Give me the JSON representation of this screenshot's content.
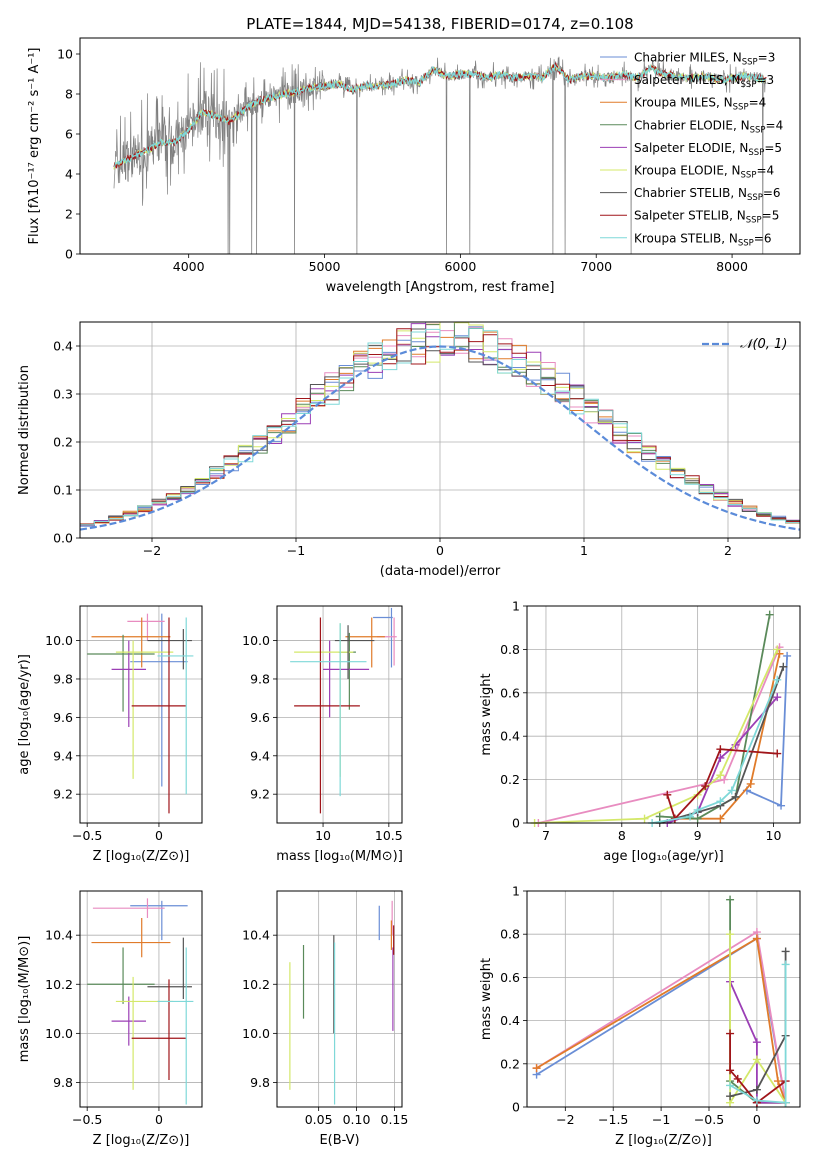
{
  "figure": {
    "title": "PLATE=1844, MJD=54138, FIBERID=0174, z=0.108"
  },
  "legend_items": [
    {
      "text": "Chabrier MILES, N",
      "sub": "SSP",
      "tail": "=3",
      "color": "#6a8ed6"
    },
    {
      "text": "Salpeter MILES, N",
      "sub": "SSP",
      "tail": "=3",
      "color": "#e88cc0"
    },
    {
      "text": "Kroupa MILES, N",
      "sub": "SSP",
      "tail": "=4",
      "color": "#e07b2a"
    },
    {
      "text": "Chabrier ELODIE, N",
      "sub": "SSP",
      "tail": "=4",
      "color": "#5a8a5a"
    },
    {
      "text": "Salpeter ELODIE, N",
      "sub": "SSP",
      "tail": "=5",
      "color": "#9b3fb5"
    },
    {
      "text": "Kroupa ELODIE, N",
      "sub": "SSP",
      "tail": "=4",
      "color": "#d4e86a"
    },
    {
      "text": "Chabrier STELIB, N",
      "sub": "SSP",
      "tail": "=6",
      "color": "#555555"
    },
    {
      "text": "Salpeter STELIB, N",
      "sub": "SSP",
      "tail": "=5",
      "color": "#a0151a"
    },
    {
      "text": "Kroupa STELIB, N",
      "sub": "SSP",
      "tail": "=6",
      "color": "#7fd8d8"
    }
  ],
  "normal_label": "𝒩(0, 1)",
  "chart_data": [
    {
      "id": "spectrum",
      "type": "line",
      "xlabel": "wavelength [Angstrom, rest frame]",
      "ylabel": "Flux [fλ10⁻¹⁷ erg cm⁻² s⁻¹ A⁻¹]",
      "xlim": [
        3200,
        8500
      ],
      "ylim": [
        0,
        10.8
      ],
      "xticks": [
        4000,
        5000,
        6000,
        7000,
        8000
      ],
      "yticks": [
        0,
        2,
        4,
        6,
        8,
        10
      ],
      "grid": false,
      "continuum": [
        [
          3450,
          4.4
        ],
        [
          3600,
          4.9
        ],
        [
          3700,
          5.2
        ],
        [
          3800,
          5.6
        ],
        [
          3900,
          5.6
        ],
        [
          4000,
          6.2
        ],
        [
          4100,
          7.1
        ],
        [
          4200,
          6.9
        ],
        [
          4300,
          6.6
        ],
        [
          4400,
          7.2
        ],
        [
          4500,
          7.6
        ],
        [
          4600,
          7.8
        ],
        [
          4700,
          8.0
        ],
        [
          4800,
          8.1
        ],
        [
          4900,
          8.3
        ],
        [
          5000,
          8.4
        ],
        [
          5100,
          8.5
        ],
        [
          5200,
          8.2
        ],
        [
          5300,
          8.4
        ],
        [
          5400,
          8.4
        ],
        [
          5500,
          8.5
        ],
        [
          5600,
          8.7
        ],
        [
          5700,
          8.6
        ],
        [
          5800,
          9.2
        ],
        [
          5900,
          8.9
        ],
        [
          6000,
          9.0
        ],
        [
          6100,
          9.0
        ],
        [
          6200,
          8.8
        ],
        [
          6300,
          9.0
        ],
        [
          6400,
          8.8
        ],
        [
          6500,
          8.9
        ],
        [
          6600,
          8.8
        ],
        [
          6700,
          9.4
        ],
        [
          6800,
          8.7
        ],
        [
          6900,
          8.9
        ],
        [
          7000,
          8.9
        ],
        [
          7100,
          8.8
        ],
        [
          7200,
          9.0
        ],
        [
          7300,
          8.8
        ],
        [
          7400,
          9.3
        ],
        [
          7500,
          9.0
        ],
        [
          7600,
          8.9
        ],
        [
          7700,
          8.8
        ],
        [
          7800,
          8.9
        ],
        [
          7900,
          8.7
        ],
        [
          8000,
          8.8
        ],
        [
          8100,
          8.9
        ],
        [
          8200,
          8.8
        ],
        [
          8250,
          8.7
        ]
      ]
    },
    {
      "id": "residuals",
      "type": "histogram",
      "xlabel": "(data-model)/error",
      "ylabel": "Normed distribution",
      "xlim": [
        -2.5,
        2.5
      ],
      "ylim": [
        0,
        0.45
      ],
      "xticks": [
        -2,
        -1,
        0,
        1,
        2
      ],
      "yticks": [
        0.0,
        0.1,
        0.2,
        0.3,
        0.4
      ],
      "grid": true,
      "bin_width": 0.1,
      "reference_curve": "normal(0,1)",
      "legend": "top-right"
    },
    {
      "id": "age_vs_Z",
      "type": "scatter",
      "xlabel": "Z [log₁₀(Z/Z⊙)]",
      "ylabel": "age  [log₁₀(age/yr)]",
      "xlim": [
        -0.55,
        0.3
      ],
      "ylim": [
        9.05,
        10.18
      ],
      "xticks": [
        -0.5,
        0.0
      ],
      "yticks": [
        9.2,
        9.4,
        9.6,
        9.8,
        10.0
      ],
      "grid": true,
      "points": [
        {
          "x": 0.02,
          "y": 9.89,
          "xerr": [
            0.22,
            0.18
          ],
          "yerr": [
            0.65,
            0.25
          ],
          "color": "#6a8ed6"
        },
        {
          "x": -0.08,
          "y": 10.1,
          "xerr": [
            0.14,
            0.12
          ],
          "yerr": [
            0.1,
            0.04
          ],
          "color": "#e88cc0"
        },
        {
          "x": -0.12,
          "y": 10.02,
          "xerr": [
            0.35,
            0.2
          ],
          "yerr": [
            0.16,
            0.1
          ],
          "color": "#e07b2a"
        },
        {
          "x": -0.25,
          "y": 9.93,
          "xerr": [
            0.25,
            0.22
          ],
          "yerr": [
            0.3,
            0.1
          ],
          "color": "#5a8a5a"
        },
        {
          "x": -0.21,
          "y": 9.85,
          "xerr": [
            0.12,
            0.12
          ],
          "yerr": [
            0.3,
            0.15
          ],
          "color": "#9b3fb5"
        },
        {
          "x": -0.18,
          "y": 9.94,
          "xerr": [
            0.12,
            0.28
          ],
          "yerr": [
            0.66,
            0.06
          ],
          "color": "#d4e86a"
        },
        {
          "x": 0.17,
          "y": 10.0,
          "xerr": [
            0.25,
            0.06
          ],
          "yerr": [
            0.15,
            0.06
          ],
          "color": "#555555"
        },
        {
          "x": 0.07,
          "y": 9.66,
          "xerr": [
            0.26,
            0.12
          ],
          "yerr": [
            0.56,
            0.46
          ],
          "color": "#a0151a"
        },
        {
          "x": 0.19,
          "y": 9.92,
          "xerr": [
            0.2,
            0.05
          ],
          "yerr": [
            0.72,
            0.2
          ],
          "color": "#7fd8d8"
        }
      ]
    },
    {
      "id": "age_vs_mass",
      "type": "scatter",
      "xlabel": "mass [log₁₀(M/M⊙)]",
      "ylabel": "",
      "xlim": [
        9.65,
        10.6
      ],
      "ylim": [
        9.05,
        10.18
      ],
      "xticks": [
        10.0,
        10.5
      ],
      "yticks": [
        9.2,
        9.4,
        9.6,
        9.8,
        10.0
      ],
      "grid": true,
      "points": [
        {
          "x": 10.52,
          "y": 10.12,
          "xerr": [
            0.14,
            0.01
          ],
          "yerr": [
            0.26,
            0.05
          ],
          "color": "#6a8ed6"
        },
        {
          "x": 10.54,
          "y": 10.02,
          "xerr": [
            0.13,
            0.02
          ],
          "yerr": [
            0.15,
            0.1
          ],
          "color": "#e88cc0"
        },
        {
          "x": 10.37,
          "y": 10.02,
          "xerr": [
            0.2,
            0.1
          ],
          "yerr": [
            0.16,
            0.1
          ],
          "color": "#e07b2a"
        },
        {
          "x": 10.2,
          "y": 9.94,
          "xerr": [
            0.08,
            0.05
          ],
          "yerr": [
            0.3,
            0.1
          ],
          "color": "#5a8a5a"
        },
        {
          "x": 10.05,
          "y": 9.85,
          "xerr": [
            0.05,
            0.3
          ],
          "yerr": [
            0.25,
            0.15
          ],
          "color": "#9b3fb5"
        },
        {
          "x": 10.13,
          "y": 9.94,
          "xerr": [
            0.35,
            0.1
          ],
          "yerr": [
            0.65,
            0.15
          ],
          "color": "#d4e86a"
        },
        {
          "x": 10.19,
          "y": 10.0,
          "xerr": [
            0.1,
            0.2
          ],
          "yerr": [
            0.2,
            0.08
          ],
          "color": "#555555"
        },
        {
          "x": 9.98,
          "y": 9.66,
          "xerr": [
            0.2,
            0.3
          ],
          "yerr": [
            0.56,
            0.46
          ],
          "color": "#a0151a"
        },
        {
          "x": 10.13,
          "y": 9.89,
          "xerr": [
            0.38,
            0.2
          ],
          "yerr": [
            0.7,
            0.2
          ],
          "color": "#7fd8d8"
        }
      ]
    },
    {
      "id": "weight_vs_age",
      "type": "line",
      "xlabel": "age  [log₁₀(age/yr)]",
      "ylabel": "mass weight",
      "xlim": [
        6.75,
        10.35
      ],
      "ylim": [
        0,
        1.0
      ],
      "xticks": [
        7,
        8,
        9,
        10
      ],
      "yticks": [
        0.0,
        0.2,
        0.4,
        0.6,
        0.8,
        1.0
      ],
      "grid": true,
      "series": [
        {
          "color": "#6a8ed6",
          "x": [
            9.65,
            10.1,
            10.18
          ],
          "y": [
            0.15,
            0.08,
            0.77
          ]
        },
        {
          "color": "#e88cc0",
          "x": [
            6.9,
            9.35,
            10.08
          ],
          "y": [
            0.0,
            0.2,
            0.81
          ]
        },
        {
          "color": "#e07b2a",
          "x": [
            8.7,
            9.3,
            9.7,
            10.08
          ],
          "y": [
            0.02,
            0.02,
            0.18,
            0.78
          ]
        },
        {
          "color": "#5a8a5a",
          "x": [
            8.5,
            9.0,
            9.5,
            9.95
          ],
          "y": [
            0.03,
            0.02,
            0.12,
            0.96
          ]
        },
        {
          "color": "#9b3fb5",
          "x": [
            8.6,
            9.0,
            9.3,
            9.5,
            10.05
          ],
          "y": [
            0.0,
            0.05,
            0.3,
            0.36,
            0.58
          ]
        },
        {
          "color": "#d4e86a",
          "x": [
            6.85,
            8.3,
            9.0,
            9.3,
            10.05
          ],
          "y": [
            0.0,
            0.02,
            0.13,
            0.22,
            0.8
          ]
        },
        {
          "color": "#555555",
          "x": [
            8.5,
            9.0,
            9.3,
            9.5,
            10.13
          ],
          "y": [
            0.0,
            0.05,
            0.08,
            0.12,
            0.72
          ]
        },
        {
          "color": "#a0151a",
          "x": [
            8.6,
            8.7,
            9.1,
            9.3,
            10.05
          ],
          "y": [
            0.13,
            0.02,
            0.17,
            0.34,
            0.32
          ]
        },
        {
          "color": "#7fd8d8",
          "x": [
            8.4,
            8.9,
            9.0,
            9.3,
            9.45,
            10.05
          ],
          "y": [
            0.0,
            0.03,
            0.06,
            0.1,
            0.15,
            0.66
          ]
        }
      ]
    },
    {
      "id": "mass_vs_Z",
      "type": "scatter",
      "xlabel": "Z [log₁₀(Z/Z⊙)]",
      "ylabel": "mass [log₁₀(M/M⊙)]",
      "xlim": [
        -0.55,
        0.3
      ],
      "ylim": [
        9.7,
        10.58
      ],
      "xticks": [
        -0.5,
        0.0
      ],
      "yticks": [
        9.8,
        10.0,
        10.2,
        10.4
      ],
      "grid": true,
      "points": [
        {
          "x": 0.02,
          "y": 10.52,
          "xerr": [
            0.22,
            0.18
          ],
          "yerr": [
            0.14,
            0.02
          ],
          "color": "#6a8ed6"
        },
        {
          "x": -0.08,
          "y": 10.51,
          "xerr": [
            0.38,
            0.12
          ],
          "yerr": [
            0.04,
            0.04
          ],
          "color": "#e88cc0"
        },
        {
          "x": -0.12,
          "y": 10.37,
          "xerr": [
            0.35,
            0.2
          ],
          "yerr": [
            0.06,
            0.1
          ],
          "color": "#e07b2a"
        },
        {
          "x": -0.25,
          "y": 10.2,
          "xerr": [
            0.25,
            0.22
          ],
          "yerr": [
            0.08,
            0.15
          ],
          "color": "#5a8a5a"
        },
        {
          "x": -0.21,
          "y": 10.05,
          "xerr": [
            0.12,
            0.12
          ],
          "yerr": [
            0.1,
            0.1
          ],
          "color": "#9b3fb5"
        },
        {
          "x": -0.18,
          "y": 10.13,
          "xerr": [
            0.12,
            0.28
          ],
          "yerr": [
            0.36,
            0.1
          ],
          "color": "#d4e86a"
        },
        {
          "x": 0.17,
          "y": 10.19,
          "xerr": [
            0.25,
            0.06
          ],
          "yerr": [
            0.05,
            0.2
          ],
          "color": "#555555"
        },
        {
          "x": 0.07,
          "y": 9.98,
          "xerr": [
            0.26,
            0.12
          ],
          "yerr": [
            0.17,
            0.24
          ],
          "color": "#a0151a"
        },
        {
          "x": 0.19,
          "y": 10.13,
          "xerr": [
            0.2,
            0.05
          ],
          "yerr": [
            0.42,
            0.22
          ],
          "color": "#7fd8d8"
        }
      ]
    },
    {
      "id": "mass_vs_ebv",
      "type": "scatter",
      "xlabel": "E(B-V)",
      "ylabel": "",
      "xlim": [
        -0.005,
        0.16
      ],
      "ylim": [
        9.7,
        10.58
      ],
      "xticks": [
        0.05,
        0.1,
        0.15
      ],
      "ytick_labels": [
        "9.8",
        "10.0",
        "10.2",
        "10.4"
      ],
      "yticks": [
        9.8,
        10.0,
        10.2,
        10.4
      ],
      "xtick_labels": [
        "0.05",
        "0.10",
        "0.15"
      ],
      "grid": true,
      "points": [
        {
          "x": 0.13,
          "y": 10.45,
          "yerr": [
            0.07,
            0.07
          ],
          "color": "#6a8ed6"
        },
        {
          "x": 0.147,
          "y": 10.48,
          "yerr": [
            0.08,
            0.06
          ],
          "color": "#e88cc0"
        },
        {
          "x": 0.146,
          "y": 10.4,
          "yerr": [
            0.06,
            0.06
          ],
          "color": "#e07b2a"
        },
        {
          "x": 0.03,
          "y": 10.21,
          "yerr": [
            0.15,
            0.15
          ],
          "color": "#5a8a5a"
        },
        {
          "x": 0.148,
          "y": 10.18,
          "yerr": [
            0.17,
            0.17
          ],
          "color": "#9b3fb5"
        },
        {
          "x": 0.012,
          "y": 10.03,
          "yerr": [
            0.26,
            0.26
          ],
          "color": "#d4e86a"
        },
        {
          "x": 0.07,
          "y": 10.2,
          "yerr": [
            0.2,
            0.2
          ],
          "color": "#555555"
        },
        {
          "x": 0.149,
          "y": 10.38,
          "yerr": [
            0.06,
            0.06
          ],
          "color": "#a0151a"
        },
        {
          "x": 0.071,
          "y": 10.04,
          "yerr": [
            0.33,
            0.33
          ],
          "color": "#7fd8d8"
        }
      ]
    },
    {
      "id": "weight_vs_Z",
      "type": "line",
      "xlabel": "Z [log₁₀(Z/Z⊙)]",
      "ylabel": "mass weight",
      "xlim": [
        -2.4,
        0.45
      ],
      "ylim": [
        0,
        1.0
      ],
      "xticks": [
        -2.0,
        -1.5,
        -1.0,
        -0.5,
        0.0
      ],
      "grid": true,
      "yticks": [
        0.0,
        0.2,
        0.4,
        0.6,
        0.8,
        1.0
      ],
      "series": [
        {
          "color": "#6a8ed6",
          "x": [
            -2.3,
            0.0,
            0.3
          ],
          "y": [
            0.15,
            0.78,
            0.02
          ]
        },
        {
          "color": "#e88cc0",
          "x": [
            -2.3,
            0.0,
            0.3
          ],
          "y": [
            0.18,
            0.81,
            0.02
          ]
        },
        {
          "color": "#e07b2a",
          "x": [
            -2.3,
            0.0,
            0.22,
            0.3,
            0.0
          ],
          "y": [
            0.18,
            0.78,
            0.12,
            0.02,
            0.02
          ]
        },
        {
          "color": "#5a8a5a",
          "x": [
            -0.28,
            -0.28,
            0.0,
            0.3
          ],
          "y": [
            0.96,
            0.12,
            0.02,
            0.02
          ]
        },
        {
          "color": "#9b3fb5",
          "x": [
            -0.28,
            0.0,
            0.0,
            0.3
          ],
          "y": [
            0.58,
            0.3,
            0.02,
            0.02
          ]
        },
        {
          "color": "#d4e86a",
          "x": [
            -0.28,
            -0.28,
            0.0,
            0.3
          ],
          "y": [
            0.8,
            0.02,
            0.22,
            0.02
          ]
        },
        {
          "color": "#555555",
          "x": [
            -0.28,
            0.0,
            0.3,
            0.3
          ],
          "y": [
            0.05,
            0.08,
            0.33,
            0.72
          ]
        },
        {
          "color": "#a0151a",
          "x": [
            -0.28,
            -0.28,
            -0.2,
            0.0,
            0.3
          ],
          "y": [
            0.34,
            0.17,
            0.13,
            0.02,
            0.12
          ]
        },
        {
          "color": "#7fd8d8",
          "x": [
            -0.28,
            0.0,
            0.3,
            0.3
          ],
          "y": [
            0.1,
            0.03,
            0.02,
            0.66
          ]
        }
      ]
    }
  ]
}
